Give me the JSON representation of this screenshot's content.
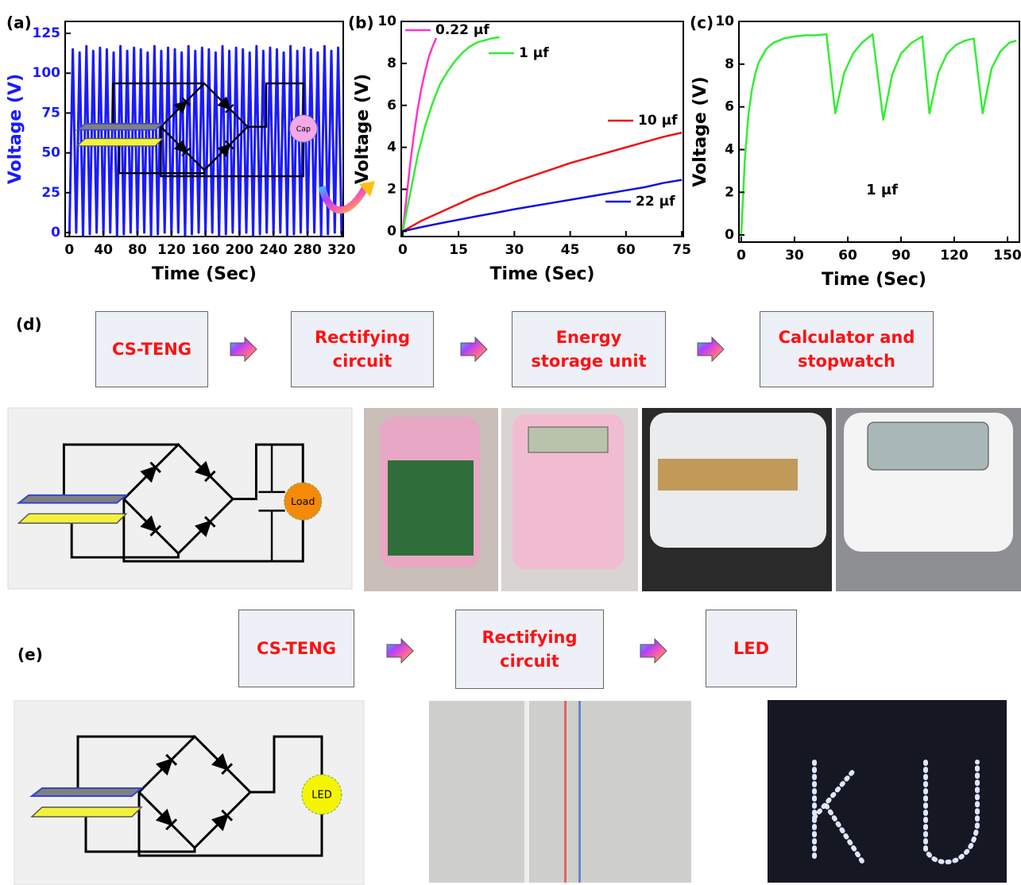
{
  "panel_labels": [
    "(a)",
    "(b)",
    "(c)",
    "(d)",
    "(e)"
  ],
  "chart_data": [
    {
      "type": "line",
      "xlabel": "Time (Sec)",
      "ylabel": "Voltage (V)",
      "ylabel_color": "#1a1aff",
      "xlim": [
        -5,
        322
      ],
      "ylim": [
        -2.5,
        132.5
      ],
      "xticks": [
        0,
        40,
        80,
        120,
        160,
        200,
        240,
        280,
        320
      ],
      "yticks": [
        0,
        25,
        50,
        75,
        100,
        125
      ],
      "series": [
        {
          "color": "#1a1aff",
          "x": [
            0,
            4,
            8,
            12,
            16,
            20,
            24,
            28,
            32,
            36,
            40,
            44,
            48,
            52,
            56,
            60,
            64,
            68,
            72,
            76,
            80,
            84,
            88,
            92,
            96,
            100,
            104,
            108,
            112,
            116,
            120,
            124,
            128,
            132,
            136,
            140,
            144,
            148,
            152,
            156,
            160,
            164,
            168,
            172,
            176,
            180,
            184,
            188,
            192,
            196,
            200,
            204,
            208,
            212,
            216,
            220,
            224,
            228,
            232,
            236,
            240,
            244,
            248,
            252,
            256,
            260,
            264,
            268,
            272,
            276,
            280,
            284,
            288,
            292,
            296,
            300,
            304,
            308,
            312,
            316,
            320
          ],
          "values": [
            -1,
            115,
            0,
            113,
            -2,
            117,
            -1,
            114,
            0,
            116,
            -1,
            115,
            0,
            113,
            -2,
            117,
            -1,
            114,
            0,
            116,
            -1,
            115,
            0,
            113,
            -2,
            117,
            -1,
            114,
            0,
            116,
            -1,
            115,
            0,
            113,
            -2,
            117,
            -1,
            114,
            0,
            116,
            -1,
            115,
            0,
            113,
            -2,
            117,
            -1,
            114,
            0,
            116,
            -1,
            115,
            0,
            113,
            -2,
            117,
            -1,
            114,
            0,
            116,
            -1,
            115,
            0,
            113,
            -2,
            117,
            -1,
            114,
            0,
            116,
            -1,
            115,
            0,
            113,
            -2,
            117,
            -1,
            114,
            0,
            116,
            -1
          ]
        }
      ],
      "circuit_load": "Cap"
    },
    {
      "type": "line",
      "xlabel": "Time (Sec)",
      "ylabel": "Voltage (V)",
      "xlim": [
        -0.4,
        75.4
      ],
      "ylim": [
        -0.25,
        10
      ],
      "xticks": [
        0,
        15,
        30,
        45,
        60,
        75
      ],
      "yticks": [
        0,
        2,
        4,
        6,
        8,
        10
      ],
      "series": [
        {
          "name": "0.22 μf",
          "color": "#ff33cc",
          "x": [
            0,
            1,
            2,
            3,
            4,
            5,
            6,
            7,
            8,
            9
          ],
          "values": [
            0,
            1.6,
            3.2,
            4.6,
            5.8,
            6.8,
            7.6,
            8.3,
            8.8,
            9.2
          ]
        },
        {
          "name": "1 μf",
          "color": "#33ee33",
          "x": [
            0,
            2,
            4,
            6,
            8,
            10,
            12,
            14,
            16,
            18,
            20,
            22,
            24,
            26
          ],
          "values": [
            0,
            1.8,
            3.6,
            5.0,
            6.1,
            7.0,
            7.6,
            8.1,
            8.5,
            8.8,
            9.0,
            9.1,
            9.2,
            9.25
          ]
        },
        {
          "name": "10 μf",
          "color": "#ee1111",
          "x": [
            0,
            5,
            10,
            15,
            20,
            25,
            30,
            35,
            40,
            45,
            50,
            55,
            60,
            65,
            70,
            75
          ],
          "values": [
            0,
            0.5,
            0.9,
            1.3,
            1.7,
            2.0,
            2.35,
            2.65,
            2.95,
            3.25,
            3.5,
            3.75,
            4.0,
            4.25,
            4.5,
            4.7
          ]
        },
        {
          "name": "22 μf",
          "color": "#1111dd",
          "x": [
            0,
            5,
            10,
            15,
            20,
            25,
            30,
            35,
            40,
            45,
            50,
            55,
            60,
            65,
            70,
            75
          ],
          "values": [
            0,
            0.2,
            0.38,
            0.55,
            0.72,
            0.88,
            1.05,
            1.2,
            1.35,
            1.5,
            1.65,
            1.8,
            1.95,
            2.1,
            2.3,
            2.45
          ]
        }
      ]
    },
    {
      "type": "line",
      "xlabel": "Time (Sec)",
      "ylabel": "Voltage (V)",
      "xlim": [
        -1.3,
        156.7
      ],
      "ylim": [
        -0.33,
        10
      ],
      "xticks": [
        0,
        30,
        60,
        90,
        120,
        150
      ],
      "yticks": [
        0,
        2,
        4,
        6,
        8,
        10
      ],
      "annotation": "1 μf",
      "series": [
        {
          "color": "#33ee33",
          "x": [
            0,
            2,
            4,
            6,
            8,
            10,
            14,
            18,
            24,
            30,
            36,
            42,
            48,
            53,
            58,
            63,
            68,
            74,
            80,
            85,
            90,
            96,
            102,
            106,
            111,
            116,
            121,
            126,
            131,
            136,
            141,
            146,
            151,
            155
          ],
          "values": [
            0,
            3.5,
            5.6,
            6.8,
            7.6,
            8.1,
            8.7,
            9.0,
            9.2,
            9.3,
            9.35,
            9.35,
            9.4,
            5.7,
            7.6,
            8.5,
            9.0,
            9.4,
            5.4,
            7.5,
            8.5,
            9.0,
            9.3,
            5.7,
            7.6,
            8.5,
            8.9,
            9.1,
            9.2,
            5.7,
            7.8,
            8.6,
            9.0,
            9.1
          ]
        }
      ]
    }
  ],
  "flow_d": {
    "steps": [
      "CS-TENG",
      "Rectifying circuit",
      "Energy storage unit",
      "Calculator and stopwatch"
    ],
    "circuit_load": "Load"
  },
  "flow_e": {
    "steps": [
      "CS-TENG",
      "Rectifying circuit",
      "LED"
    ],
    "circuit_load": "LED"
  }
}
